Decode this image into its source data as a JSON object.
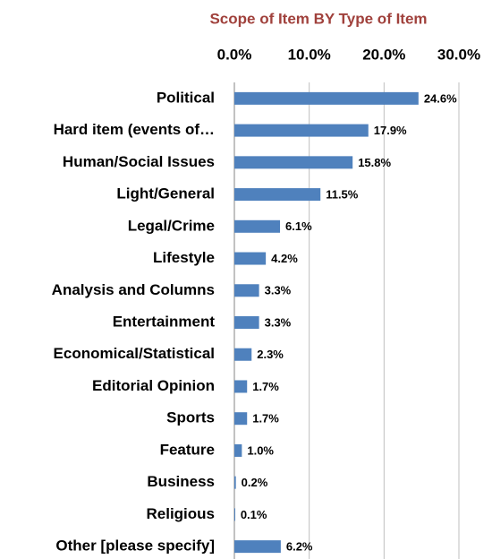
{
  "chart_data": {
    "type": "bar",
    "orientation": "horizontal",
    "title": "Scope of Item BY Type of Item",
    "categories": [
      "Political",
      "Hard item (events of…",
      "Human/Social Issues",
      "Light/General",
      "Legal/Crime",
      "Lifestyle",
      "Analysis and Columns",
      "Entertainment",
      "Economical/Statistical",
      "Editorial Opinion",
      "Sports",
      "Feature",
      "Business",
      "Religious",
      "Other [please specify]"
    ],
    "values": [
      24.6,
      17.9,
      15.8,
      11.5,
      6.1,
      4.2,
      3.3,
      3.3,
      2.3,
      1.7,
      1.7,
      1.0,
      0.2,
      0.1,
      6.2
    ],
    "value_labels": [
      "24.6%",
      "17.9%",
      "15.8%",
      "11.5%",
      "6.1%",
      "4.2%",
      "3.3%",
      "3.3%",
      "2.3%",
      "1.7%",
      "1.7%",
      "1.0%",
      "0.2%",
      "0.1%",
      "6.2%"
    ],
    "color": "#4f81bd",
    "xlim": [
      0,
      30
    ],
    "xticks": [
      {
        "value": 0,
        "label": "0.0%"
      },
      {
        "value": 10,
        "label": "10.0%"
      },
      {
        "value": 20,
        "label": "20.0%"
      },
      {
        "value": 30,
        "label": "30.0%"
      }
    ],
    "grid": true
  }
}
